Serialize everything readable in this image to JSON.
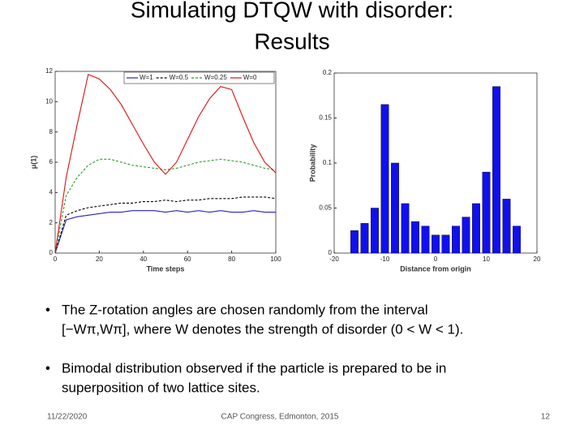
{
  "title": [
    "Simulating DTQW with disorder:",
    "Results"
  ],
  "chart_data": [
    {
      "type": "line",
      "xlabel": "Time steps",
      "ylabel": "μ(1)",
      "x": [
        0,
        5,
        10,
        15,
        20,
        25,
        30,
        35,
        40,
        45,
        50,
        55,
        60,
        65,
        70,
        75,
        80,
        85,
        90,
        95,
        100
      ],
      "xlim": [
        0,
        100
      ],
      "xticks": [
        0,
        20,
        40,
        60,
        80,
        100
      ],
      "ylim": [
        0,
        12
      ],
      "yticks": [
        0,
        2,
        4,
        6,
        8,
        10,
        12
      ],
      "legend": "top",
      "series": [
        {
          "name": "W=1",
          "color": "#2222cc",
          "dash": "solid",
          "values": [
            0,
            2.2,
            2.4,
            2.5,
            2.6,
            2.7,
            2.7,
            2.8,
            2.8,
            2.8,
            2.7,
            2.8,
            2.7,
            2.8,
            2.7,
            2.8,
            2.7,
            2.7,
            2.8,
            2.7,
            2.7
          ]
        },
        {
          "name": "W=0.5",
          "color": "#000000",
          "dash": "dashed",
          "values": [
            0,
            2.5,
            2.8,
            3.0,
            3.1,
            3.2,
            3.3,
            3.3,
            3.4,
            3.4,
            3.5,
            3.4,
            3.5,
            3.5,
            3.6,
            3.6,
            3.6,
            3.7,
            3.7,
            3.7,
            3.6
          ]
        },
        {
          "name": "W=0.25",
          "color": "#2a9a2a",
          "dash": "dashed",
          "values": [
            0,
            3.8,
            5.0,
            5.8,
            6.2,
            6.2,
            6.0,
            5.8,
            5.7,
            5.6,
            5.5,
            5.6,
            5.8,
            6.0,
            6.1,
            6.2,
            6.1,
            6.0,
            5.8,
            5.6,
            5.5
          ]
        },
        {
          "name": "W=0",
          "color": "#dd1111",
          "dash": "solid",
          "values": [
            0,
            5.0,
            8.5,
            11.8,
            11.5,
            10.8,
            9.8,
            8.5,
            7.2,
            6.0,
            5.2,
            6.0,
            7.5,
            9.0,
            10.2,
            11.0,
            10.8,
            9.0,
            7.3,
            6.0,
            5.3
          ]
        }
      ]
    },
    {
      "type": "bar",
      "xlabel": "Distance from origin",
      "ylabel": "Probability",
      "color": "#1010ee",
      "x": [
        -16,
        -14,
        -12,
        -10,
        -8,
        -6,
        -4,
        -2,
        0,
        2,
        4,
        6,
        8,
        10,
        12,
        14,
        16
      ],
      "values": [
        0.025,
        0.033,
        0.05,
        0.165,
        0.1,
        0.055,
        0.035,
        0.03,
        0.02,
        0.02,
        0.03,
        0.04,
        0.055,
        0.09,
        0.185,
        0.06,
        0.03
      ],
      "xlim": [
        -20,
        20
      ],
      "xticks": [
        -20,
        -10,
        0,
        10,
        20
      ],
      "ylim": [
        0,
        0.2
      ],
      "yticks": [
        0,
        0.05,
        0.1,
        0.15,
        0.2
      ]
    }
  ],
  "bullets": [
    [
      "The Z-rotation angles are chosen randomly from the interval",
      "[−Wπ,Wπ], where W denotes the strength of disorder (0 < W < 1)."
    ],
    [
      "Bimodal distribution observed if the particle is prepared to be in",
      "superposition of two lattice sites."
    ]
  ],
  "footer": {
    "date": "11/22/2020",
    "center": "CAP Congress, Edmonton, 2015",
    "page": "12"
  }
}
